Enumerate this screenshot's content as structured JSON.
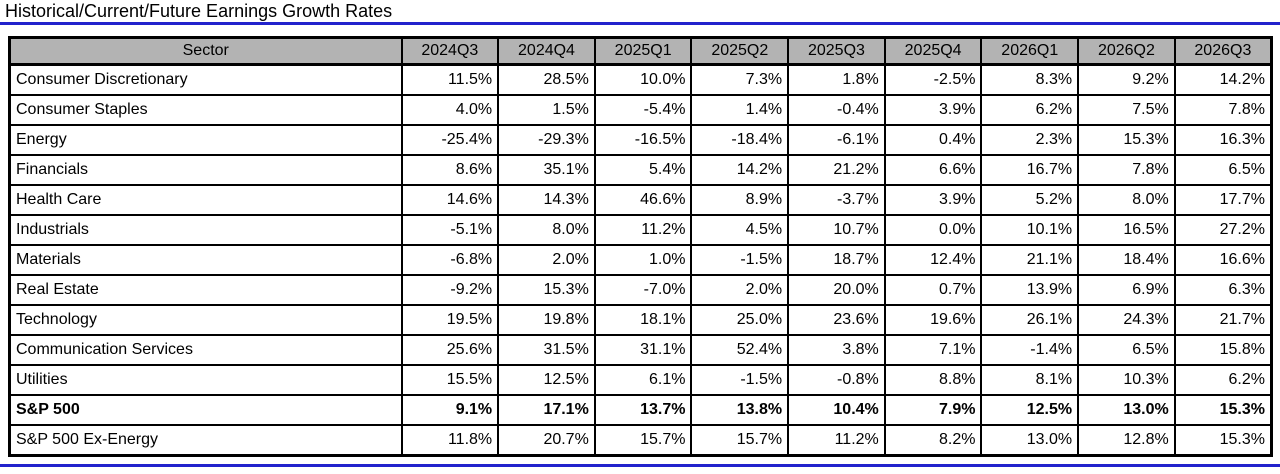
{
  "colors": {
    "accent_blue": "#2222CC",
    "header_bg": "#B3B3B3",
    "border": "#000000",
    "row_bg": "#FFFFFF"
  },
  "chart_data": {
    "type": "table",
    "title": "Historical/Current/Future Earnings Growth Rates",
    "columns": [
      "Sector",
      "2024Q3",
      "2024Q4",
      "2025Q1",
      "2025Q2",
      "2025Q3",
      "2025Q4",
      "2026Q1",
      "2026Q2",
      "2026Q3"
    ],
    "rows": [
      {
        "sector": "Consumer Discretionary",
        "emphasis": false,
        "values": [
          "11.5%",
          "28.5%",
          "10.0%",
          "7.3%",
          "1.8%",
          "-2.5%",
          "8.3%",
          "9.2%",
          "14.2%"
        ]
      },
      {
        "sector": "Consumer Staples",
        "emphasis": false,
        "values": [
          "4.0%",
          "1.5%",
          "-5.4%",
          "1.4%",
          "-0.4%",
          "3.9%",
          "6.2%",
          "7.5%",
          "7.8%"
        ]
      },
      {
        "sector": "Energy",
        "emphasis": false,
        "values": [
          "-25.4%",
          "-29.3%",
          "-16.5%",
          "-18.4%",
          "-6.1%",
          "0.4%",
          "2.3%",
          "15.3%",
          "16.3%"
        ]
      },
      {
        "sector": "Financials",
        "emphasis": false,
        "values": [
          "8.6%",
          "35.1%",
          "5.4%",
          "14.2%",
          "21.2%",
          "6.6%",
          "16.7%",
          "7.8%",
          "6.5%"
        ]
      },
      {
        "sector": "Health Care",
        "emphasis": false,
        "values": [
          "14.6%",
          "14.3%",
          "46.6%",
          "8.9%",
          "-3.7%",
          "3.9%",
          "5.2%",
          "8.0%",
          "17.7%"
        ]
      },
      {
        "sector": "Industrials",
        "emphasis": false,
        "values": [
          "-5.1%",
          "8.0%",
          "11.2%",
          "4.5%",
          "10.7%",
          "0.0%",
          "10.1%",
          "16.5%",
          "27.2%"
        ]
      },
      {
        "sector": "Materials",
        "emphasis": false,
        "values": [
          "-6.8%",
          "2.0%",
          "1.0%",
          "-1.5%",
          "18.7%",
          "12.4%",
          "21.1%",
          "18.4%",
          "16.6%"
        ]
      },
      {
        "sector": "Real Estate",
        "emphasis": false,
        "values": [
          "-9.2%",
          "15.3%",
          "-7.0%",
          "2.0%",
          "20.0%",
          "0.7%",
          "13.9%",
          "6.9%",
          "6.3%"
        ]
      },
      {
        "sector": "Technology",
        "emphasis": false,
        "values": [
          "19.5%",
          "19.8%",
          "18.1%",
          "25.0%",
          "23.6%",
          "19.6%",
          "26.1%",
          "24.3%",
          "21.7%"
        ]
      },
      {
        "sector": "Communication Services",
        "emphasis": false,
        "values": [
          "25.6%",
          "31.5%",
          "31.1%",
          "52.4%",
          "3.8%",
          "7.1%",
          "-1.4%",
          "6.5%",
          "15.8%"
        ]
      },
      {
        "sector": "Utilities",
        "emphasis": false,
        "values": [
          "15.5%",
          "12.5%",
          "6.1%",
          "-1.5%",
          "-0.8%",
          "8.8%",
          "8.1%",
          "10.3%",
          "6.2%"
        ]
      },
      {
        "sector": "S&P 500",
        "emphasis": true,
        "values": [
          "9.1%",
          "17.1%",
          "13.7%",
          "13.8%",
          "10.4%",
          "7.9%",
          "12.5%",
          "13.0%",
          "15.3%"
        ]
      },
      {
        "sector": "S&P 500 Ex-Energy",
        "emphasis": false,
        "values": [
          "11.8%",
          "20.7%",
          "15.7%",
          "15.7%",
          "11.2%",
          "8.2%",
          "13.0%",
          "12.8%",
          "15.3%"
        ]
      }
    ]
  }
}
